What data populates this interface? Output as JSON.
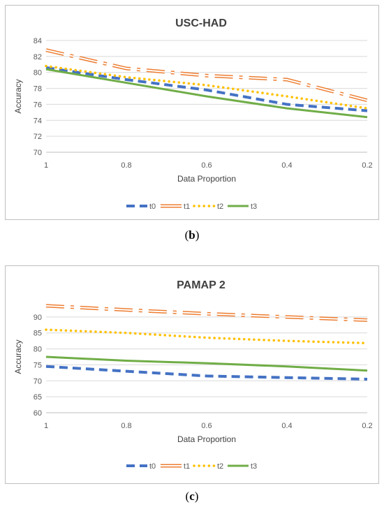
{
  "chart_data": [
    {
      "type": "line",
      "title": "USC-HAD",
      "xlabel": "Data Proportion",
      "ylabel": "Accuracy",
      "caption_letter": "b",
      "x": [
        "1",
        "0.8",
        "0.6",
        "0.4",
        "0.2"
      ],
      "ylim": [
        70,
        84
      ],
      "yticks": [
        70,
        72,
        74,
        76,
        78,
        80,
        82,
        84
      ],
      "grid": true,
      "legend_position": "bottom",
      "series": [
        {
          "name": "t0",
          "color": "#4472c4",
          "style": "dash",
          "values": [
            80.6,
            79.1,
            77.8,
            76.0,
            75.2
          ]
        },
        {
          "name": "t1",
          "color": "#ed7d31",
          "style": "double-dashdot",
          "values": [
            82.8,
            80.5,
            79.6,
            79.1,
            76.5
          ]
        },
        {
          "name": "t2",
          "color": "#ffc000",
          "style": "dot",
          "values": [
            80.8,
            79.4,
            78.4,
            77.0,
            75.5
          ]
        },
        {
          "name": "t3",
          "color": "#70ad47",
          "style": "solid",
          "values": [
            80.4,
            78.7,
            77.0,
            75.5,
            74.4
          ]
        }
      ]
    },
    {
      "type": "line",
      "title": "PAMAP 2",
      "xlabel": "Data Proportion",
      "ylabel": "Accuracy",
      "caption_letter": "c",
      "x": [
        "1",
        "0.8",
        "0.6",
        "0.4",
        "0.2"
      ],
      "ylim": [
        60,
        95
      ],
      "yticks": [
        60,
        65,
        70,
        75,
        80,
        85,
        90
      ],
      "grid": true,
      "legend_position": "bottom",
      "series": [
        {
          "name": "t0",
          "color": "#4472c4",
          "style": "dash",
          "values": [
            74.5,
            73.0,
            71.5,
            71.0,
            70.5
          ]
        },
        {
          "name": "t1",
          "color": "#ed7d31",
          "style": "double-dashdot",
          "values": [
            93.5,
            92.2,
            91.0,
            90.0,
            89.0
          ]
        },
        {
          "name": "t2",
          "color": "#ffc000",
          "style": "dot",
          "values": [
            86.0,
            85.0,
            83.5,
            82.5,
            81.8
          ]
        },
        {
          "name": "t3",
          "color": "#70ad47",
          "style": "solid",
          "values": [
            77.5,
            76.3,
            75.5,
            74.5,
            73.2
          ]
        }
      ]
    }
  ]
}
